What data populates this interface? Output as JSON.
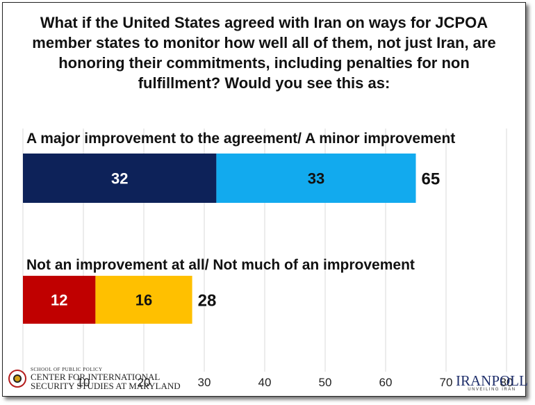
{
  "chart_data": {
    "type": "bar",
    "stacked": true,
    "orientation": "horizontal",
    "title": "What if the United States agreed with Iran on ways for JCPOA member states to monitor how well all of them, not just Iran, are honoring their commitments, including penalties for non fulfillment? Would you see this as:",
    "categories": [
      "A major improvement to the agreement/ A minor improvement",
      "Not an improvement at all/ Not much of an improvement"
    ],
    "series": [
      {
        "values": [
          32,
          12
        ],
        "colors": [
          "#0d2259",
          "#c00000"
        ]
      },
      {
        "values": [
          33,
          16
        ],
        "colors": [
          "#12aaee",
          "#ffc000"
        ]
      }
    ],
    "totals": [
      65,
      28
    ],
    "x_ticks": [
      "10",
      "20",
      "30",
      "40",
      "50",
      "60",
      "70",
      "80"
    ],
    "xlim": [
      0,
      80
    ],
    "grid": true
  },
  "logos": {
    "left_small": "SCHOOL OF PUBLIC POLICY",
    "left_line1": "CENTER FOR INTERNATIONAL",
    "left_line2": "SECURITY STUDIES AT MARYLAND",
    "right_name": "IRANPOLL",
    "right_tagline": "UNVEILING IRAN"
  }
}
